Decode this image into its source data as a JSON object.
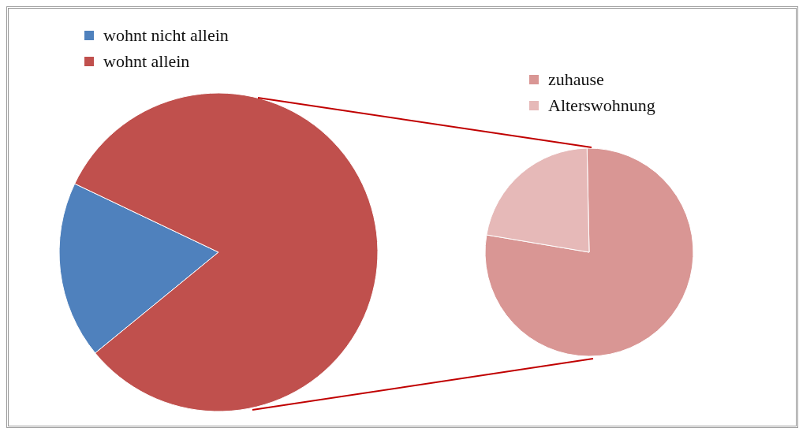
{
  "chart_data": [
    {
      "type": "pie",
      "categories": [
        "wohnt nicht allein",
        "wohnt allein"
      ],
      "values": [
        18,
        82
      ],
      "colors": [
        "#4f81bd",
        "#c0504d"
      ],
      "legend": "top left"
    },
    {
      "type": "pie",
      "categories": [
        "zuhause",
        "Alterswohnung"
      ],
      "values": [
        78,
        22
      ],
      "colors": [
        "#d99694",
        "#e6b9b8"
      ],
      "legend": "top"
    }
  ]
}
